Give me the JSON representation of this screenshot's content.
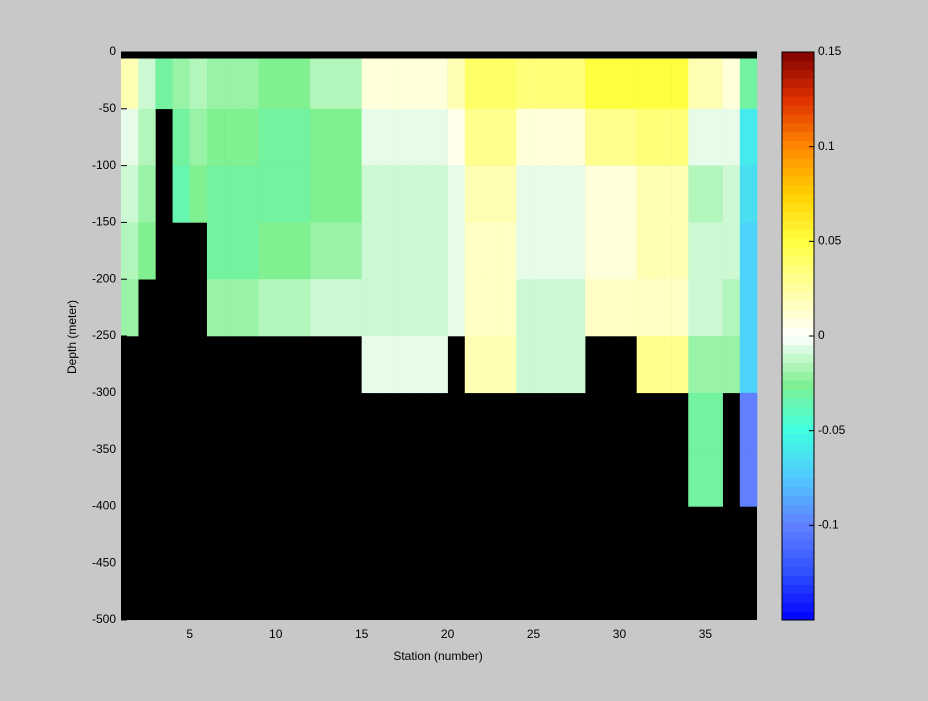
{
  "chart_data": {
    "type": "heatmap",
    "xlabel": "Station (number)",
    "ylabel": "Depth (meter)",
    "xlim": [
      1,
      38
    ],
    "ylim": [
      -500,
      0
    ],
    "xticks": [
      5,
      10,
      15,
      20,
      25,
      30,
      35
    ],
    "yticks": [
      0,
      -50,
      -100,
      -150,
      -200,
      -250,
      -300,
      -350,
      -400,
      -450,
      -500
    ],
    "x_edges": [
      1,
      2,
      3,
      4,
      5,
      6,
      7,
      8,
      9,
      10,
      11,
      12,
      13,
      14,
      15,
      16,
      17,
      18,
      19,
      20,
      21,
      22,
      23,
      24,
      25,
      26,
      27,
      28,
      29,
      30,
      31,
      32,
      33,
      34,
      35,
      36,
      37,
      38
    ],
    "y_edges": [
      0,
      -50,
      -100,
      -150,
      -200,
      -250,
      -300,
      -350,
      -400
    ],
    "values": [
      [
        0.02,
        -0.01,
        -0.03,
        -0.02,
        -0.015,
        -0.02,
        -0.02,
        -0.02,
        -0.025,
        -0.025,
        -0.025,
        -0.015,
        -0.015,
        -0.015,
        0.01,
        0.01,
        0.01,
        0.01,
        0.01,
        0.02,
        0.04,
        0.04,
        0.04,
        0.035,
        0.035,
        0.035,
        0.035,
        0.05,
        0.05,
        0.05,
        0.05,
        0.05,
        0.05,
        0.02,
        0.02,
        0.01,
        -0.03
      ],
      [
        -0.005,
        -0.015,
        null,
        -0.03,
        -0.02,
        -0.025,
        -0.025,
        -0.025,
        -0.03,
        -0.03,
        -0.03,
        -0.025,
        -0.025,
        -0.025,
        -0.005,
        -0.005,
        -0.005,
        -0.005,
        -0.005,
        0.005,
        0.03,
        0.03,
        0.03,
        0.01,
        0.01,
        0.01,
        0.01,
        0.03,
        0.03,
        0.03,
        0.035,
        0.035,
        0.035,
        -0.005,
        -0.005,
        -0.005,
        -0.06
      ],
      [
        -0.01,
        -0.02,
        null,
        -0.035,
        -0.025,
        -0.03,
        -0.03,
        -0.03,
        -0.03,
        -0.03,
        -0.03,
        -0.025,
        -0.025,
        -0.025,
        -0.01,
        -0.01,
        -0.01,
        -0.01,
        -0.01,
        -0.005,
        0.02,
        0.02,
        0.02,
        -0.005,
        -0.005,
        -0.005,
        -0.005,
        0.01,
        0.01,
        0.01,
        0.02,
        0.02,
        0.02,
        -0.015,
        -0.015,
        -0.01,
        -0.065
      ],
      [
        -0.015,
        -0.025,
        null,
        null,
        null,
        -0.03,
        -0.03,
        -0.03,
        -0.025,
        -0.025,
        -0.025,
        -0.02,
        -0.02,
        -0.02,
        -0.01,
        -0.01,
        -0.01,
        -0.01,
        -0.01,
        -0.005,
        0.015,
        0.015,
        0.015,
        -0.005,
        -0.005,
        -0.005,
        -0.005,
        0.01,
        0.01,
        0.01,
        0.02,
        0.02,
        0.02,
        -0.01,
        -0.01,
        -0.01,
        -0.07
      ],
      [
        -0.02,
        null,
        null,
        null,
        null,
        -0.02,
        -0.02,
        -0.02,
        -0.015,
        -0.015,
        -0.015,
        -0.01,
        -0.01,
        -0.01,
        -0.01,
        -0.01,
        -0.01,
        -0.01,
        -0.01,
        -0.005,
        0.015,
        0.015,
        0.015,
        -0.01,
        -0.01,
        -0.01,
        -0.01,
        0.015,
        0.015,
        0.015,
        0.015,
        0.015,
        0.015,
        -0.01,
        -0.01,
        -0.015,
        -0.07
      ],
      [
        null,
        null,
        null,
        null,
        null,
        null,
        null,
        null,
        null,
        null,
        null,
        null,
        null,
        null,
        -0.005,
        -0.005,
        -0.005,
        -0.005,
        -0.005,
        null,
        0.02,
        0.02,
        0.02,
        -0.01,
        -0.01,
        -0.01,
        -0.01,
        null,
        null,
        null,
        0.03,
        0.03,
        0.03,
        -0.02,
        -0.02,
        -0.02,
        -0.07
      ],
      [
        null,
        null,
        null,
        null,
        null,
        null,
        null,
        null,
        null,
        null,
        null,
        null,
        null,
        null,
        null,
        null,
        null,
        null,
        null,
        null,
        null,
        null,
        null,
        null,
        null,
        null,
        null,
        null,
        null,
        null,
        null,
        null,
        null,
        -0.03,
        -0.03,
        null,
        -0.1
      ],
      [
        null,
        null,
        null,
        null,
        null,
        null,
        null,
        null,
        null,
        null,
        null,
        null,
        null,
        null,
        null,
        null,
        null,
        null,
        null,
        null,
        null,
        null,
        null,
        null,
        null,
        null,
        null,
        null,
        null,
        null,
        null,
        null,
        null,
        -0.03,
        -0.03,
        null,
        -0.1
      ]
    ],
    "background": "#000000",
    "colorbar": {
      "clim": [
        -0.15,
        0.15
      ],
      "ticks": [
        -0.1,
        -0.05,
        0,
        0.05,
        0.1,
        0.15
      ],
      "colormap": [
        "#0000ff",
        "#3050ff",
        "#6080ff",
        "#50c8ff",
        "#40ffe0",
        "#80f090",
        "#ffffff",
        "#ffffa0",
        "#ffff40",
        "#ffd000",
        "#ff8800",
        "#e03000",
        "#800000"
      ]
    }
  }
}
